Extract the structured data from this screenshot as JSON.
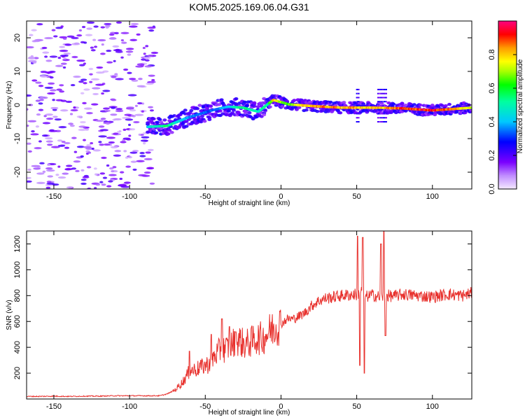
{
  "title": "KOM5.2025.169.06.04.G31",
  "chart_data": [
    {
      "type": "heatmap",
      "xlabel": "Height of straight line (km)",
      "ylabel": "Frequency (Hz)",
      "xlim": [
        -168,
        126
      ],
      "ylim": [
        -25,
        25
      ],
      "xticks": [
        -150,
        -100,
        -50,
        0,
        50,
        100
      ],
      "yticks": [
        -20,
        -10,
        0,
        10,
        20
      ],
      "colorbar": {
        "label": "Normalized spectral amplitude",
        "range": [
          0,
          1
        ],
        "ticks": [
          0.0,
          0.2,
          0.4,
          0.6,
          0.8
        ]
      },
      "ridge": {
        "description_points": [
          {
            "x": -88,
            "y": -6.5,
            "amp": 0.45
          },
          {
            "x": -75,
            "y": -6.2,
            "amp": 0.6
          },
          {
            "x": -62,
            "y": -3.8,
            "amp": 0.4
          },
          {
            "x": -45,
            "y": -1.5,
            "amp": 0.35
          },
          {
            "x": -35,
            "y": -0.5,
            "amp": 0.45
          },
          {
            "x": -25,
            "y": -0.8,
            "amp": 0.6
          },
          {
            "x": -15,
            "y": -2.0,
            "amp": 0.5
          },
          {
            "x": -8,
            "y": 0.5,
            "amp": 0.6
          },
          {
            "x": -5,
            "y": 1.5,
            "amp": 0.85
          },
          {
            "x": 5,
            "y": 0.2,
            "amp": 0.7
          },
          {
            "x": 20,
            "y": -0.3,
            "amp": 0.9
          },
          {
            "x": 40,
            "y": -0.8,
            "amp": 0.9
          },
          {
            "x": 60,
            "y": -0.8,
            "amp": 0.85
          },
          {
            "x": 80,
            "y": -1.0,
            "amp": 0.95
          },
          {
            "x": 100,
            "y": -1.6,
            "amp": 1.0
          },
          {
            "x": 126,
            "y": -0.8,
            "amp": 0.8
          }
        ]
      }
    },
    {
      "type": "line",
      "xlabel": "Height of straight line (km)",
      "ylabel": "SNR (v/v)",
      "xlim": [
        -168,
        126
      ],
      "ylim": [
        0,
        1300
      ],
      "xticks": [
        -150,
        -100,
        -50,
        0,
        50,
        100
      ],
      "yticks": [
        200,
        400,
        600,
        800,
        1000,
        1200
      ],
      "color": "#e8322e",
      "series": [
        {
          "x": [
            -168,
            -160,
            -150,
            -140,
            -130,
            -120,
            -110,
            -100,
            -90,
            -80,
            -75,
            -70,
            -65,
            -60,
            -56,
            -52,
            -48,
            -44,
            -40,
            -36,
            -32,
            -28,
            -24,
            -20,
            -16,
            -12,
            -8,
            -4,
            0,
            4,
            8,
            12,
            16,
            20,
            25,
            30,
            35,
            40,
            45,
            50,
            53,
            56,
            60,
            65,
            70,
            75,
            80,
            90,
            100,
            110,
            120,
            126
          ],
          "y": [
            20,
            20,
            22,
            20,
            22,
            22,
            25,
            25,
            25,
            25,
            40,
            70,
            130,
            220,
            230,
            250,
            270,
            330,
            380,
            390,
            430,
            460,
            420,
            440,
            470,
            470,
            520,
            560,
            580,
            620,
            620,
            640,
            670,
            720,
            760,
            780,
            790,
            800,
            805,
            810,
            830,
            790,
            805,
            790,
            800,
            795,
            810,
            800,
            790,
            810,
            800,
            820
          ]
        }
      ],
      "spikes": [
        {
          "x": -60.5,
          "top": 370
        },
        {
          "x": -53,
          "top": 300
        },
        {
          "x": -46,
          "top": 500
        },
        {
          "x": -39,
          "top": 620
        },
        {
          "x": -34,
          "top": 560
        },
        {
          "x": -30,
          "top": 520
        },
        {
          "x": 50.5,
          "top": 1260
        },
        {
          "x": 52,
          "top": 260
        },
        {
          "x": 54,
          "top": 1250
        },
        {
          "x": 55,
          "top": 200
        },
        {
          "x": 66,
          "top": 1200
        },
        {
          "x": 68,
          "top": 1300
        },
        {
          "x": 69,
          "top": 490
        }
      ]
    }
  ]
}
